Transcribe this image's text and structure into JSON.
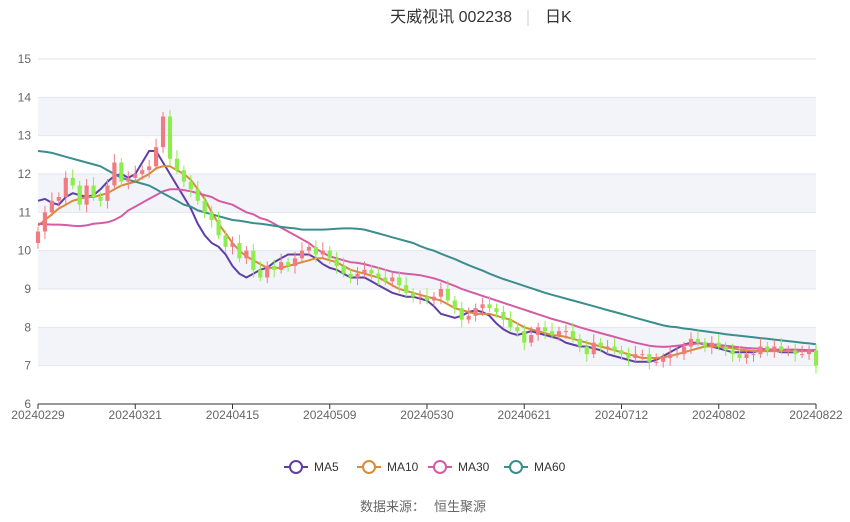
{
  "chart_data": {
    "type": "candlestick",
    "title": "天威视讯 002238",
    "period": "日K",
    "source_label": "数据来源：",
    "source_name": "恒生聚源",
    "ylim": [
      6,
      15
    ],
    "y_ticks": [
      6,
      7,
      8,
      9,
      10,
      11,
      12,
      13,
      14,
      15
    ],
    "x_tick_labels": [
      "20240229",
      "20240321",
      "20240415",
      "20240509",
      "20240530",
      "20240621",
      "20240712",
      "20240802",
      "20240822"
    ],
    "x_tick_positions": [
      0,
      14,
      28,
      42,
      56,
      70,
      84,
      98,
      112
    ],
    "up_color": "#f07c82",
    "down_color": "#8ded4c",
    "grid": true,
    "legend_position": "bottom",
    "closes": [
      10.5,
      11.0,
      11.3,
      11.4,
      11.9,
      11.7,
      11.2,
      11.7,
      11.4,
      11.3,
      11.7,
      12.3,
      11.8,
      11.9,
      12.0,
      12.1,
      12.2,
      12.7,
      13.5,
      12.4,
      12.1,
      11.8,
      11.6,
      11.3,
      11.0,
      10.8,
      10.4,
      10.1,
      10.2,
      9.8,
      10.0,
      9.5,
      9.3,
      9.6,
      9.5,
      9.7,
      9.6,
      9.8,
      10.0,
      10.1,
      9.9,
      10.0,
      9.8,
      9.6,
      9.4,
      9.3,
      9.4,
      9.5,
      9.4,
      9.3,
      9.2,
      9.3,
      9.1,
      8.9,
      8.8,
      8.8,
      8.7,
      8.8,
      9.0,
      8.7,
      8.5,
      8.2,
      8.3,
      8.5,
      8.6,
      8.5,
      8.4,
      8.2,
      8.0,
      7.9,
      7.6,
      7.8,
      8.0,
      7.9,
      7.8,
      7.9,
      7.9,
      7.7,
      7.5,
      7.3,
      7.6,
      7.5,
      7.5,
      7.4,
      7.3,
      7.2,
      7.3,
      7.3,
      7.1,
      7.1,
      7.2,
      7.3,
      7.3,
      7.5,
      7.7,
      7.6,
      7.5,
      7.6,
      7.5,
      7.4,
      7.3,
      7.2,
      7.3,
      7.3,
      7.5,
      7.4,
      7.5,
      7.4,
      7.4,
      7.3,
      7.3,
      7.4,
      7.0
    ],
    "series": [
      {
        "name": "MA5",
        "color": "#5f3fa6",
        "values": [
          11.3,
          11.35,
          11.25,
          11.2,
          11.4,
          11.5,
          11.45,
          11.4,
          11.45,
          11.6,
          11.8,
          11.95,
          12.0,
          11.9,
          12.0,
          12.3,
          12.6,
          12.6,
          12.3,
          12.0,
          11.7,
          11.4,
          11.1,
          10.7,
          10.4,
          10.2,
          10.1,
          9.9,
          9.6,
          9.4,
          9.3,
          9.4,
          9.5,
          9.55,
          9.7,
          9.8,
          9.9,
          9.9,
          9.9,
          9.9,
          9.8,
          9.65,
          9.55,
          9.5,
          9.4,
          9.3,
          9.3,
          9.3,
          9.2,
          9.1,
          9.0,
          8.9,
          8.85,
          8.8,
          8.8,
          8.75,
          8.7,
          8.55,
          8.35,
          8.3,
          8.25,
          8.3,
          8.4,
          8.45,
          8.4,
          8.3,
          8.1,
          7.95,
          7.85,
          7.8,
          7.85,
          7.9,
          7.85,
          7.8,
          7.75,
          7.7,
          7.6,
          7.55,
          7.5,
          7.5,
          7.45,
          7.4,
          7.3,
          7.25,
          7.2,
          7.15,
          7.1,
          7.1,
          7.1,
          7.15,
          7.25,
          7.35,
          7.45,
          7.55,
          7.6,
          7.6,
          7.55,
          7.5,
          7.45,
          7.4,
          7.35,
          7.35,
          7.35,
          7.35,
          7.4,
          7.4,
          7.4,
          7.35,
          7.35,
          7.35,
          7.4,
          7.4,
          7.4
        ]
      },
      {
        "name": "MA10",
        "color": "#d98a3a",
        "values": [
          10.65,
          10.8,
          10.95,
          11.1,
          11.2,
          11.3,
          11.35,
          11.4,
          11.4,
          11.45,
          11.5,
          11.6,
          11.7,
          11.75,
          11.8,
          11.9,
          12.0,
          12.15,
          12.2,
          12.2,
          12.1,
          12.0,
          11.85,
          11.6,
          11.35,
          11.0,
          10.7,
          10.45,
          10.2,
          10.0,
          9.85,
          9.75,
          9.65,
          9.55,
          9.55,
          9.55,
          9.6,
          9.65,
          9.7,
          9.75,
          9.8,
          9.8,
          9.75,
          9.7,
          9.6,
          9.5,
          9.45,
          9.4,
          9.35,
          9.3,
          9.2,
          9.1,
          9.0,
          8.95,
          8.9,
          8.85,
          8.8,
          8.75,
          8.7,
          8.6,
          8.5,
          8.45,
          8.4,
          8.35,
          8.35,
          8.35,
          8.3,
          8.25,
          8.2,
          8.1,
          8.0,
          7.95,
          7.9,
          7.85,
          7.8,
          7.78,
          7.75,
          7.7,
          7.65,
          7.6,
          7.55,
          7.5,
          7.45,
          7.4,
          7.35,
          7.3,
          7.25,
          7.2,
          7.2,
          7.2,
          7.22,
          7.25,
          7.3,
          7.35,
          7.4,
          7.45,
          7.5,
          7.5,
          7.5,
          7.48,
          7.45,
          7.42,
          7.4,
          7.38,
          7.38,
          7.38,
          7.38,
          7.38,
          7.38,
          7.38,
          7.38,
          7.38,
          7.38
        ]
      },
      {
        "name": "MA30",
        "color": "#d45ca5",
        "values": [
          10.7,
          10.69,
          10.68,
          10.68,
          10.67,
          10.65,
          10.64,
          10.66,
          10.7,
          10.72,
          10.74,
          10.8,
          10.9,
          11.05,
          11.15,
          11.25,
          11.35,
          11.45,
          11.55,
          11.6,
          11.6,
          11.58,
          11.55,
          11.5,
          11.45,
          11.4,
          11.3,
          11.25,
          11.2,
          11.1,
          11.0,
          10.95,
          10.85,
          10.8,
          10.7,
          10.6,
          10.5,
          10.4,
          10.3,
          10.2,
          10.05,
          9.95,
          9.85,
          9.8,
          9.75,
          9.7,
          9.68,
          9.65,
          9.6,
          9.55,
          9.5,
          9.45,
          9.42,
          9.4,
          9.38,
          9.36,
          9.32,
          9.28,
          9.22,
          9.15,
          9.08,
          9.0,
          8.94,
          8.88,
          8.82,
          8.76,
          8.7,
          8.64,
          8.58,
          8.52,
          8.46,
          8.4,
          8.34,
          8.28,
          8.22,
          8.17,
          8.12,
          8.06,
          8.0,
          7.95,
          7.9,
          7.85,
          7.8,
          7.75,
          7.7,
          7.65,
          7.6,
          7.56,
          7.52,
          7.5,
          7.49,
          7.5,
          7.52,
          7.54,
          7.56,
          7.58,
          7.58,
          7.56,
          7.54,
          7.52,
          7.5,
          7.48,
          7.46,
          7.45,
          7.44,
          7.43,
          7.42,
          7.42,
          7.42,
          7.42,
          7.41,
          7.4,
          7.38
        ]
      },
      {
        "name": "MA60",
        "color": "#3a8e8e",
        "values": [
          12.6,
          12.58,
          12.55,
          12.5,
          12.45,
          12.4,
          12.35,
          12.3,
          12.25,
          12.2,
          12.1,
          12.0,
          11.9,
          11.85,
          11.8,
          11.75,
          11.7,
          11.6,
          11.5,
          11.4,
          11.3,
          11.2,
          11.15,
          11.05,
          11.0,
          10.95,
          10.9,
          10.85,
          10.8,
          10.78,
          10.75,
          10.72,
          10.7,
          10.68,
          10.65,
          10.62,
          10.6,
          10.58,
          10.55,
          10.55,
          10.55,
          10.55,
          10.56,
          10.57,
          10.58,
          10.58,
          10.57,
          10.55,
          10.5,
          10.45,
          10.4,
          10.35,
          10.3,
          10.25,
          10.2,
          10.12,
          10.05,
          10.0,
          9.92,
          9.85,
          9.78,
          9.7,
          9.62,
          9.55,
          9.48,
          9.4,
          9.33,
          9.26,
          9.2,
          9.14,
          9.08,
          9.02,
          8.96,
          8.9,
          8.85,
          8.8,
          8.75,
          8.7,
          8.65,
          8.6,
          8.55,
          8.5,
          8.45,
          8.4,
          8.35,
          8.3,
          8.25,
          8.2,
          8.15,
          8.1,
          8.05,
          8.02,
          8.0,
          7.97,
          7.95,
          7.92,
          7.9,
          7.87,
          7.85,
          7.82,
          7.8,
          7.78,
          7.76,
          7.74,
          7.72,
          7.7,
          7.68,
          7.66,
          7.64,
          7.62,
          7.6,
          7.58,
          7.56
        ]
      }
    ]
  }
}
